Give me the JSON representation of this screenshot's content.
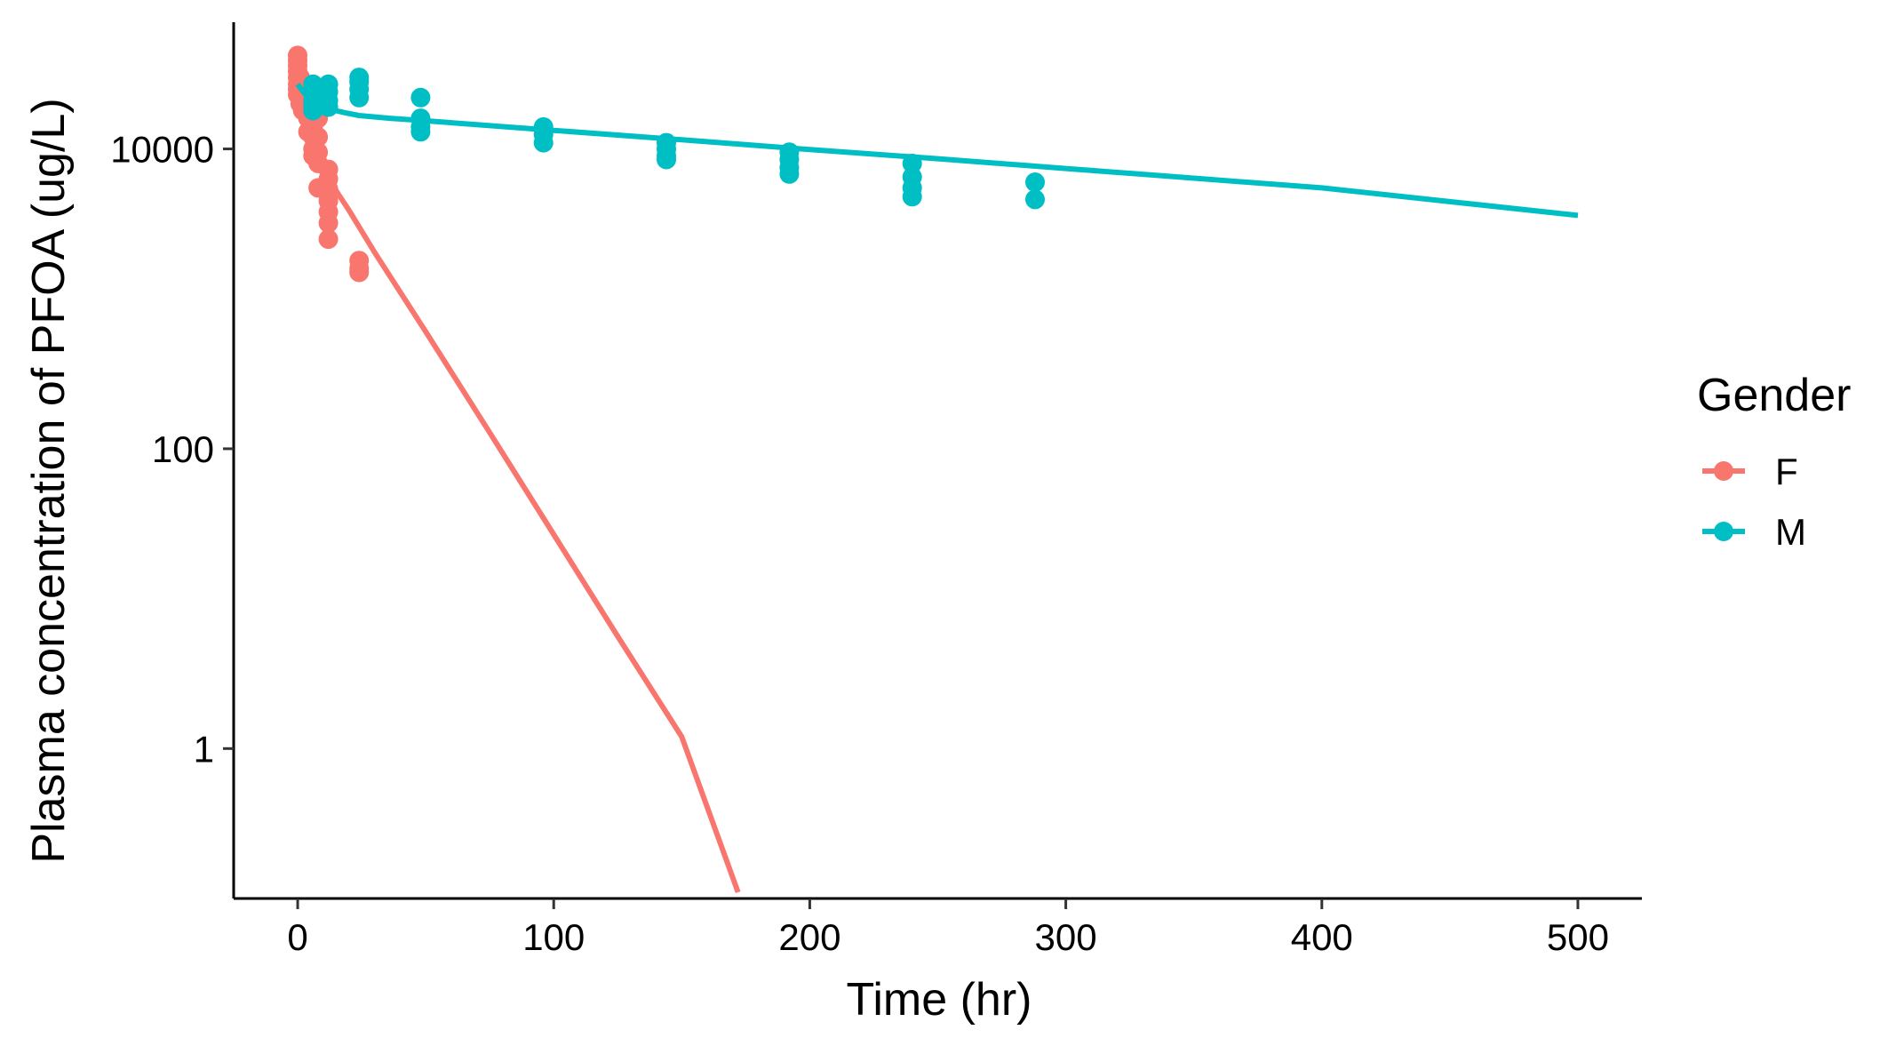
{
  "chart_data": {
    "type": "scatter",
    "title": "",
    "xlabel": "Time (hr)",
    "ylabel": "Plasma concentration of PFOA (ug/L)",
    "xlim": [
      -25,
      525
    ],
    "ylim": [
      0.1,
      70000
    ],
    "y_scale": "log10",
    "x_ticks": [
      0,
      100,
      200,
      300,
      400,
      500
    ],
    "x_tick_labels": [
      "0",
      "100",
      "200",
      "300",
      "400",
      "500"
    ],
    "y_ticks": [
      1,
      100,
      10000
    ],
    "y_tick_labels": [
      "1",
      "100",
      "10000"
    ],
    "grid": false,
    "legend": {
      "title": "Gender",
      "position": "right"
    },
    "series": [
      {
        "name": "F",
        "color": "#F8766D",
        "points": [
          [
            0,
            42000
          ],
          [
            0,
            39000
          ],
          [
            0,
            36000
          ],
          [
            0,
            33000
          ],
          [
            0,
            30000
          ],
          [
            0,
            27000
          ],
          [
            0,
            25000
          ],
          [
            0,
            23000
          ],
          [
            1,
            30000
          ],
          [
            1,
            26000
          ],
          [
            1,
            23000
          ],
          [
            1,
            20000
          ],
          [
            2,
            24000
          ],
          [
            2,
            21000
          ],
          [
            2,
            18000
          ],
          [
            4,
            19000
          ],
          [
            4,
            16000
          ],
          [
            4,
            13000
          ],
          [
            6,
            21000
          ],
          [
            6,
            17000
          ],
          [
            6,
            14000
          ],
          [
            6,
            12000
          ],
          [
            6,
            10000
          ],
          [
            6,
            9000
          ],
          [
            8,
            16000
          ],
          [
            8,
            12000
          ],
          [
            8,
            9500
          ],
          [
            8,
            8000
          ],
          [
            8,
            5500
          ],
          [
            12,
            7300
          ],
          [
            12,
            6300
          ],
          [
            12,
            5400
          ],
          [
            12,
            4500
          ],
          [
            12,
            3800
          ],
          [
            12,
            3200
          ],
          [
            12,
            2500
          ],
          [
            24,
            1800
          ],
          [
            24,
            1600
          ],
          [
            24,
            1500
          ]
        ],
        "fit_line": [
          [
            0,
            30000
          ],
          [
            2,
            19000
          ],
          [
            4,
            14500
          ],
          [
            6,
            11000
          ],
          [
            8,
            8700
          ],
          [
            10,
            7400
          ],
          [
            12,
            6300
          ],
          [
            20,
            3900
          ],
          [
            30,
            2050
          ],
          [
            50,
            605
          ],
          [
            75,
            128
          ],
          [
            100,
            26.8
          ],
          [
            125,
            5.6
          ],
          [
            150,
            1.2
          ],
          [
            172,
            0.11
          ]
        ]
      },
      {
        "name": "M",
        "color": "#00BFC4",
        "points": [
          [
            6,
            27000
          ],
          [
            6,
            25000
          ],
          [
            6,
            23000
          ],
          [
            6,
            21000
          ],
          [
            6,
            19500
          ],
          [
            6,
            18000
          ],
          [
            12,
            27000
          ],
          [
            12,
            24000
          ],
          [
            12,
            21000
          ],
          [
            12,
            19000
          ],
          [
            24,
            30000
          ],
          [
            24,
            28000
          ],
          [
            24,
            25000
          ],
          [
            24,
            22000
          ],
          [
            48,
            22000
          ],
          [
            48,
            16000
          ],
          [
            48,
            14000
          ],
          [
            48,
            13000
          ],
          [
            96,
            14000
          ],
          [
            96,
            12500
          ],
          [
            96,
            11000
          ],
          [
            144,
            11000
          ],
          [
            144,
            10000
          ],
          [
            144,
            9000
          ],
          [
            144,
            8500
          ],
          [
            192,
            9500
          ],
          [
            192,
            8500
          ],
          [
            192,
            7500
          ],
          [
            192,
            6800
          ],
          [
            240,
            8000
          ],
          [
            240,
            6500
          ],
          [
            240,
            5500
          ],
          [
            240,
            4800
          ],
          [
            288,
            6000
          ],
          [
            288,
            4600
          ]
        ],
        "fit_line": [
          [
            0,
            27000
          ],
          [
            3,
            23000
          ],
          [
            6,
            21000
          ],
          [
            9,
            19500
          ],
          [
            12,
            18500
          ],
          [
            18,
            17500
          ],
          [
            24,
            16700
          ],
          [
            36,
            16000
          ],
          [
            48,
            15500
          ],
          [
            100,
            13300
          ],
          [
            150,
            11500
          ],
          [
            200,
            9900
          ],
          [
            250,
            8600
          ],
          [
            300,
            7400
          ],
          [
            400,
            5500
          ],
          [
            500,
            3600
          ]
        ]
      }
    ]
  }
}
